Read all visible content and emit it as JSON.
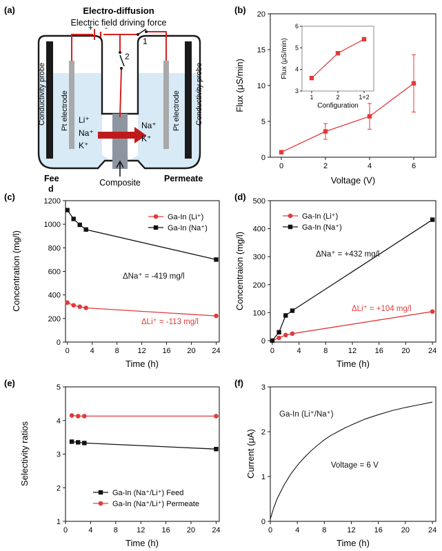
{
  "panel_a": {
    "label": "(a)",
    "title": "Electro-diffusion",
    "subtitle": "Electric field driving force",
    "battery_plus": "+",
    "battery_minus": "-",
    "switch_1": "1",
    "switch_2": "2",
    "probe_left": "Conductivity probe",
    "probe_right": "Conductivity probe",
    "electrode_left": "Pt electrode",
    "electrode_right": "Pt electrode",
    "ions_feed": [
      "Li⁺",
      "Na⁺",
      "K⁺"
    ],
    "ions_permeate": [
      "Na⁺",
      "K⁺"
    ],
    "feed_label_1": "Fee",
    "feed_label_2": "d",
    "composite_label": "Composite",
    "permeate_label": "Permeate",
    "colors": {
      "solution": "#d7eaf6",
      "wire": "#d42020",
      "arrow": "#c0191b",
      "electrode": "#a9a9a9",
      "composite": "#8d96a0"
    }
  },
  "chart_data": [
    {
      "id": "b",
      "panel_label": "(b)",
      "type": "line",
      "xlabel": "Voltage (V)",
      "ylabel": "Flux (μS/min)",
      "xlim": [
        -0.5,
        7
      ],
      "ylim": [
        0,
        20
      ],
      "xticks": [
        0,
        2,
        4,
        6
      ],
      "yticks": [
        0,
        5,
        10,
        15,
        20
      ],
      "series": [
        {
          "color": "#e03a3a",
          "marker": "square",
          "x": [
            0,
            2,
            4,
            6
          ],
          "y": [
            0.7,
            3.6,
            5.7,
            10.3
          ],
          "err": [
            0,
            1.1,
            1.8,
            4.0
          ]
        }
      ],
      "inset": {
        "type": "line",
        "xlabel": "Configuration",
        "ylabel": "Flux (μS/min)",
        "categories": [
          "1",
          "2",
          "1+2"
        ],
        "ylim": [
          3,
          6
        ],
        "yticks": [
          3,
          4,
          5,
          6
        ],
        "values": [
          3.6,
          4.75,
          5.4
        ],
        "color": "#e03a3a"
      }
    },
    {
      "id": "c",
      "panel_label": "(c)",
      "type": "line",
      "xlabel": "Time (h)",
      "ylabel": "Concentration (mg/l)",
      "xlim": [
        -0.3,
        24.5
      ],
      "ylim": [
        0,
        1200
      ],
      "xticks": [
        0,
        4,
        8,
        12,
        16,
        20,
        24
      ],
      "yticks": [
        0,
        200,
        400,
        600,
        800,
        1000,
        1200
      ],
      "series": [
        {
          "name": "Ga-In (Li⁺)",
          "color": "#e03a3a",
          "marker": "circle",
          "x": [
            0,
            1,
            2,
            3,
            24
          ],
          "y": [
            335,
            312,
            300,
            290,
            222
          ]
        },
        {
          "name": "Ga-In (Na⁺)",
          "color": "#111111",
          "marker": "square",
          "x": [
            0,
            1,
            2,
            3,
            24
          ],
          "y": [
            1120,
            1045,
            995,
            955,
            700
          ]
        }
      ],
      "legend": "top-right",
      "annotations": [
        {
          "text": "ΔNa⁺ = -419 mg/l",
          "color": "#111111"
        },
        {
          "text": "ΔLi⁺ = -113 mg/l",
          "color": "#e03a3a"
        }
      ]
    },
    {
      "id": "d",
      "panel_label": "(d)",
      "type": "line",
      "xlabel": "Time (h)",
      "ylabel": "Concentraion (mg/l)",
      "xlim": [
        -0.3,
        24.5
      ],
      "ylim": [
        -5,
        500
      ],
      "xticks": [
        0,
        4,
        8,
        12,
        16,
        20,
        24
      ],
      "yticks": [
        0,
        100,
        200,
        300,
        400,
        500
      ],
      "series": [
        {
          "name": "Ga-In (Li⁺)",
          "color": "#e03a3a",
          "marker": "circle",
          "x": [
            0,
            1,
            2,
            3,
            24
          ],
          "y": [
            0,
            10,
            20,
            25,
            104
          ]
        },
        {
          "name": "Ga-In (Na⁺)",
          "color": "#111111",
          "marker": "square",
          "x": [
            0,
            1,
            2,
            3,
            24
          ],
          "y": [
            0,
            30,
            90,
            107,
            432
          ]
        }
      ],
      "legend": "top-left",
      "annotations": [
        {
          "text": "ΔNa⁺ = +432 mg/l",
          "color": "#111111"
        },
        {
          "text": "ΔLi⁺ = +104 mg/l",
          "color": "#e03a3a"
        }
      ]
    },
    {
      "id": "e",
      "panel_label": "(e)",
      "type": "line",
      "xlabel": "Time (h)",
      "ylabel": "Selectivity ratios",
      "xlim": [
        0,
        24.5
      ],
      "ylim": [
        1,
        5
      ],
      "xticks": [
        0,
        4,
        8,
        12,
        16,
        20,
        24
      ],
      "yticks": [
        1,
        2,
        3,
        4,
        5
      ],
      "series": [
        {
          "name": "Ga-In (Na⁺/Li⁺) Feed",
          "color": "#111111",
          "marker": "square",
          "x": [
            1,
            2,
            3,
            24
          ],
          "y": [
            3.37,
            3.35,
            3.33,
            3.15
          ]
        },
        {
          "name": "Ga-In (Na⁺/Li⁺) Permeate",
          "color": "#e03a3a",
          "marker": "circle",
          "x": [
            1,
            2,
            3,
            24
          ],
          "y": [
            4.15,
            4.13,
            4.13,
            4.13
          ]
        }
      ],
      "legend": "bottom-left"
    },
    {
      "id": "f",
      "panel_label": "(f)",
      "type": "line",
      "xlabel": "Time (h)",
      "ylabel": "Current (μA)",
      "xlim": [
        0,
        24.5
      ],
      "ylim": [
        0,
        3
      ],
      "xticks": [
        0,
        4,
        8,
        12,
        16,
        20,
        24
      ],
      "yticks": [
        0,
        1,
        2,
        3
      ],
      "series": [
        {
          "color": "#111111",
          "marker": "none",
          "x": [
            0,
            0.5,
            1,
            2,
            3,
            4,
            5,
            6,
            7,
            8,
            9,
            10,
            11,
            12,
            14,
            16,
            18,
            20,
            22,
            24
          ],
          "y": [
            0.05,
            0.3,
            0.5,
            0.8,
            1.05,
            1.25,
            1.42,
            1.57,
            1.7,
            1.82,
            1.92,
            2.0,
            2.08,
            2.15,
            2.28,
            2.38,
            2.47,
            2.54,
            2.6,
            2.66
          ]
        }
      ],
      "annotations": [
        {
          "text": "Ga-In (Li⁺/Na⁺)",
          "color": "#111111"
        },
        {
          "text": "Voltage = 6 V",
          "color": "#111111"
        }
      ]
    }
  ]
}
